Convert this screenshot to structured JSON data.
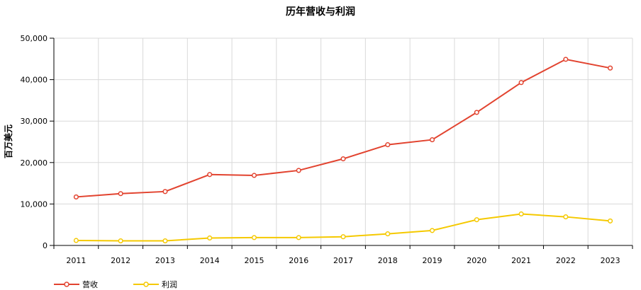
{
  "chart_data": {
    "type": "line",
    "title": "历年营收与利润",
    "xlabel": "",
    "ylabel": "百万美元",
    "categories": [
      "2011",
      "2012",
      "2013",
      "2014",
      "2015",
      "2016",
      "2017",
      "2018",
      "2019",
      "2020",
      "2021",
      "2022",
      "2023"
    ],
    "ylim": [
      0,
      50000
    ],
    "y_ticks": [
      "0",
      "10,000",
      "20,000",
      "30,000",
      "40,000",
      "50,000"
    ],
    "grid": true,
    "legend_position": "bottom-left",
    "series": [
      {
        "name": "营收",
        "color": "#e2432f",
        "values": [
          11700,
          12500,
          13000,
          17100,
          16900,
          18100,
          20900,
          24300,
          25500,
          32100,
          39300,
          44900,
          42800
        ]
      },
      {
        "name": "利润",
        "color": "#f5c900",
        "values": [
          1200,
          1100,
          1100,
          1800,
          1900,
          1900,
          2100,
          2800,
          3600,
          6200,
          7600,
          6900,
          5900
        ]
      }
    ]
  }
}
